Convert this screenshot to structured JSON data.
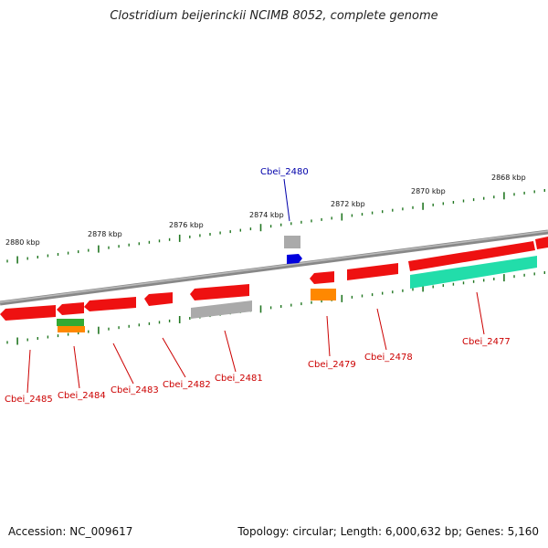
{
  "title": "Clostridium beijerinckii NCIMB 8052, complete genome",
  "footer": {
    "accession": "Accession: NC_009617",
    "summary": "Topology: circular; Length: 6,000,632 bp; Genes: 5,160"
  },
  "colors": {
    "cds": "#ee1111",
    "pseudogene": "#aaaaaa",
    "highlight": "#0000dd",
    "tick": "#227722",
    "backbone": "#888888",
    "label_red": "#cc0000",
    "label_blue": "#0000aa",
    "rna_green": "#33aa33",
    "rna_orange": "#ff8800",
    "aqua": "#22ddaa"
  },
  "scale_labels": [
    "2880 kbp",
    "2878 kbp",
    "2876 kbp",
    "2874 kbp",
    "2872 kbp",
    "2870 kbp",
    "2868 kbp"
  ],
  "genes": [
    {
      "name": "Cbei_2485",
      "color": "label_red"
    },
    {
      "name": "Cbei_2484",
      "color": "label_red"
    },
    {
      "name": "Cbei_2483",
      "color": "label_red"
    },
    {
      "name": "Cbei_2482",
      "color": "label_red"
    },
    {
      "name": "Cbei_2481",
      "color": "label_red"
    },
    {
      "name": "Cbei_2480",
      "color": "label_blue"
    },
    {
      "name": "Cbei_2479",
      "color": "label_red"
    },
    {
      "name": "Cbei_2478",
      "color": "label_red"
    },
    {
      "name": "Cbei_2477",
      "color": "label_red"
    }
  ]
}
